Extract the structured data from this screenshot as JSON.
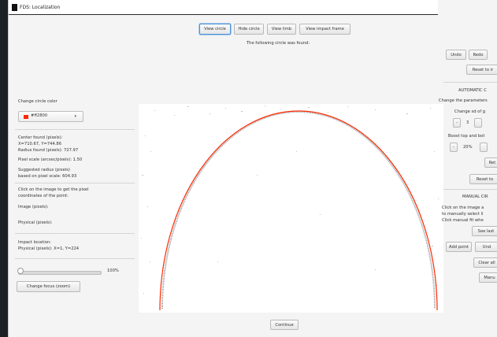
{
  "window": {
    "title": "FDS: Localization"
  },
  "toolbar": {
    "view_circle": "View circle",
    "hide_circle": "Hide circle",
    "view_limb": "View limb",
    "view_impact_frame": "View impact frame"
  },
  "status": {
    "found_message": "The following circle was found:"
  },
  "left": {
    "change_color_label": "Change circle color",
    "color_value": "#ff2800",
    "center_found": "Center found (pixels):",
    "center_coords": "X=710.67, Y=744.86",
    "radius_found": "Radius found (pixels): 727.97",
    "pixel_scale": "Pixel scale (arcsec/pixels): 1.50",
    "suggested_radius_1": "Suggested radius (pixels)",
    "suggested_radius_2": "based on pixel scale: 604.93",
    "click_info_1": "Click on the image to get the pixel",
    "click_info_2": "coordinates of the point:",
    "image_pixels": "Image (pixels):",
    "physical_pixels": "Physical (pixels):",
    "impact_location": "Impact location:",
    "impact_coords": "Physical (pixels): X=1, Y=224",
    "zoom_value": "100%",
    "change_focus": "Change focus (zoom)"
  },
  "right": {
    "undo": "Undo",
    "redo": "Redo",
    "reset_to_ir": "Reset to ir",
    "automatic_title": "AUTOMATIC C",
    "change_params": "Change the parameters",
    "change_sd": "Change sd of g",
    "minus": "-",
    "sd_value": "3",
    "boost_top": "Boost top and bot",
    "boost_value": "20%",
    "ret": "Ret",
    "reset_to": "Reset to",
    "manual_title": "MANUAL CIR",
    "manual_1": "Click on the image a",
    "manual_2": "to manually select li",
    "manual_3": "Click manual fit whe",
    "see_last": "See last",
    "add_point": "Add point",
    "und": "Und",
    "clear_all": "Clear all",
    "manu": "Manu"
  },
  "footer": {
    "continue": "Continue"
  },
  "colors": {
    "circle": "#ff2800",
    "accent": "#4a90d9"
  }
}
